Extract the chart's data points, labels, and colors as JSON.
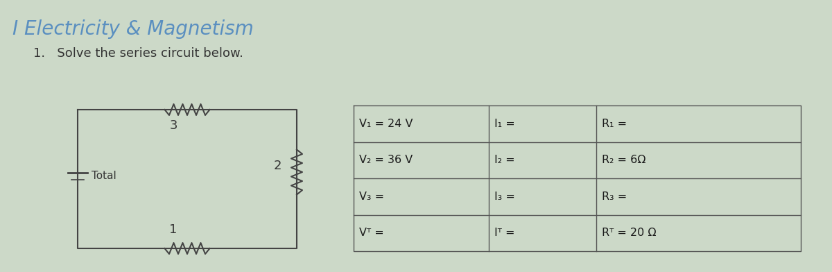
{
  "title": "I Electricity & Magnetism",
  "subtitle": "1.   Solve the series circuit below.",
  "title_color": "#5a8fc0",
  "subtitle_color": "#333333",
  "background_color": "#ccd9c8",
  "table_rows": [
    [
      "V₁ = 24 V",
      "I₁ =",
      "R₁ ="
    ],
    [
      "V₂ = 36 V",
      "I₂ =",
      "R₂ = 6Ω"
    ],
    [
      "V₃ =",
      "I₃ =",
      "R₃ ="
    ],
    [
      "Vᵀ =",
      "Iᵀ =",
      "Rᵀ = 20 Ω"
    ]
  ],
  "resistor_labels": [
    "3",
    "2",
    "1"
  ],
  "battery_label": "Total"
}
